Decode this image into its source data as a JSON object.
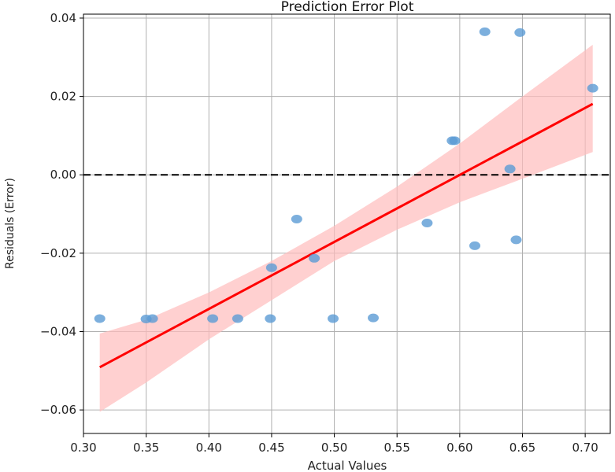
{
  "chart_data": {
    "type": "scatter",
    "title": "Prediction Error Plot",
    "xlabel": "Actual Values",
    "ylabel": "Residuals (Error)",
    "xlim": [
      0.3,
      0.72
    ],
    "ylim": [
      -0.066,
      0.041
    ],
    "x_ticks": [
      "0.30",
      "0.35",
      "0.40",
      "0.45",
      "0.50",
      "0.55",
      "0.60",
      "0.65",
      "0.70"
    ],
    "y_ticks": [
      "0.04",
      "0.02",
      "0.00",
      "−0.02",
      "−0.04",
      "−0.06"
    ],
    "x_tick_values": [
      0.3,
      0.35,
      0.4,
      0.45,
      0.5,
      0.55,
      0.6,
      0.65,
      0.7
    ],
    "y_tick_values": [
      0.04,
      0.02,
      0.0,
      -0.02,
      -0.04,
      -0.06
    ],
    "grid": true,
    "points": [
      {
        "x": 0.313,
        "y": -0.0367
      },
      {
        "x": 0.35,
        "y": -0.0368
      },
      {
        "x": 0.355,
        "y": -0.0367
      },
      {
        "x": 0.403,
        "y": -0.0367
      },
      {
        "x": 0.423,
        "y": -0.0367
      },
      {
        "x": 0.449,
        "y": -0.0367
      },
      {
        "x": 0.45,
        "y": -0.0237
      },
      {
        "x": 0.47,
        "y": -0.0113
      },
      {
        "x": 0.484,
        "y": -0.0213
      },
      {
        "x": 0.499,
        "y": -0.0367
      },
      {
        "x": 0.531,
        "y": -0.0365
      },
      {
        "x": 0.574,
        "y": -0.0123
      },
      {
        "x": 0.594,
        "y": 0.0087
      },
      {
        "x": 0.596,
        "y": 0.0087
      },
      {
        "x": 0.612,
        "y": -0.0181
      },
      {
        "x": 0.62,
        "y": 0.0365
      },
      {
        "x": 0.64,
        "y": 0.0015
      },
      {
        "x": 0.645,
        "y": -0.0166
      },
      {
        "x": 0.648,
        "y": 0.0363
      },
      {
        "x": 0.706,
        "y": 0.0221
      }
    ],
    "regression_line": {
      "x": [
        0.313,
        0.706
      ],
      "y": [
        -0.0491,
        0.0181
      ]
    },
    "confidence_band": {
      "x": [
        0.313,
        0.35,
        0.4,
        0.45,
        0.5,
        0.55,
        0.6,
        0.65,
        0.706
      ],
      "upper": [
        -0.0405,
        -0.037,
        -0.03,
        -0.022,
        -0.013,
        -0.003,
        0.008,
        0.02,
        0.0332
      ],
      "lower": [
        -0.0605,
        -0.053,
        -0.042,
        -0.032,
        -0.022,
        -0.014,
        -0.007,
        -0.001,
        0.0058
      ]
    },
    "reference_line_y": 0.0,
    "colors": {
      "points": "#5b9bd5",
      "regression": "#ff0000",
      "band": "#ffbcbc",
      "reference": "#000000",
      "grid": "#b0b0b0"
    }
  }
}
